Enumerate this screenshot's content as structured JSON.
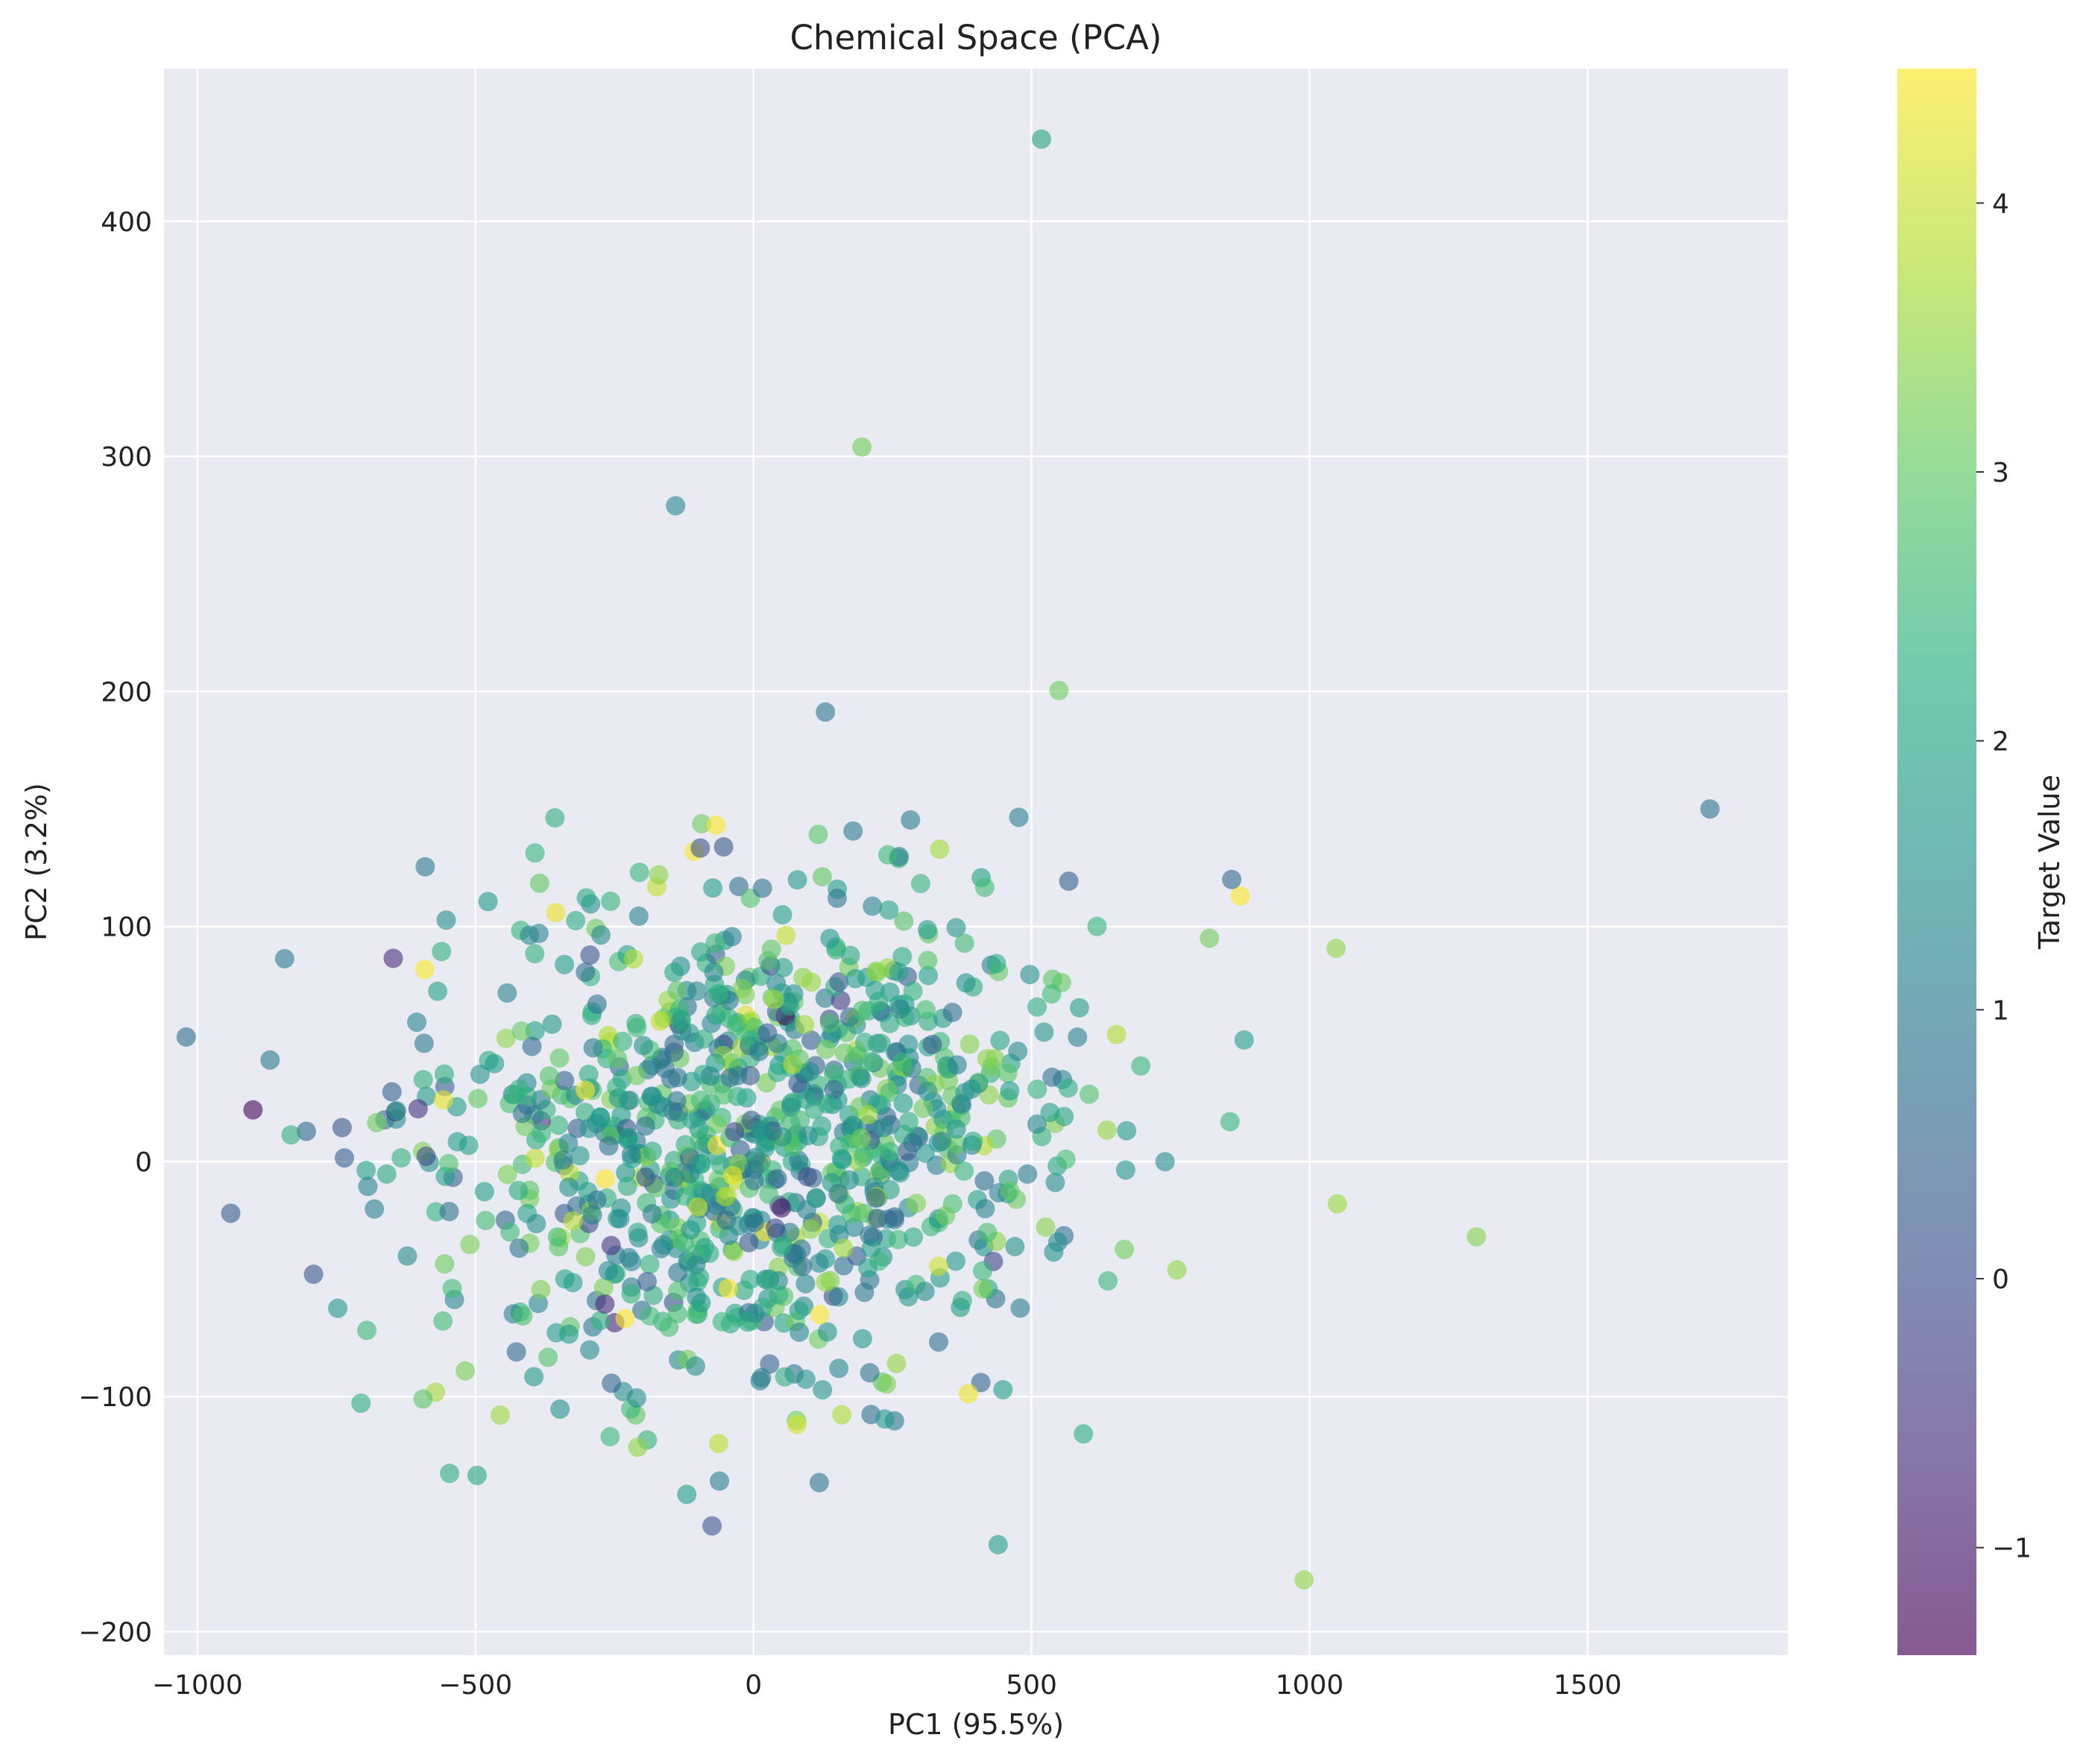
{
  "chart_data": {
    "type": "scatter",
    "title": "Chemical Space (PCA)",
    "xlabel": "PC1 (95.5%)",
    "ylabel": "PC2 (3.2%)",
    "xlim": [
      -1060,
      1860
    ],
    "ylim": [
      -210,
      465
    ],
    "xticks": [
      -1000,
      -500,
      0,
      500,
      1000,
      1500
    ],
    "yticks": [
      -200,
      -100,
      0,
      100,
      200,
      300,
      400
    ],
    "grid": true,
    "background": "#eaeaf2",
    "colorbar": {
      "label": "Target Value",
      "colormap": "viridis",
      "range": [
        -1.4,
        4.5
      ],
      "ticks": [
        -1,
        0,
        1,
        2,
        3,
        4
      ]
    },
    "marker_alpha": 0.6,
    "notable_points": [
      {
        "x": 518,
        "y": 435,
        "value": 2.0
      },
      {
        "x": 195,
        "y": 304,
        "value": 3.2
      },
      {
        "x": -140,
        "y": 279,
        "value": 1.3
      },
      {
        "x": 1720,
        "y": 150,
        "value": 0.8
      },
      {
        "x": -940,
        "y": -22,
        "value": 0.3
      },
      {
        "x": -900,
        "y": 22,
        "value": -1.3
      },
      {
        "x": 1300,
        "y": -32,
        "value": 3.4
      },
      {
        "x": 1050,
        "y": -18,
        "value": 3.6
      },
      {
        "x": 990,
        "y": -178,
        "value": 3.5
      },
      {
        "x": 860,
        "y": 120,
        "value": 0.6
      },
      {
        "x": 820,
        "y": 95,
        "value": 3.2
      },
      {
        "x": 440,
        "y": -163,
        "value": 1.9
      }
    ],
    "cluster": {
      "n_points": 1000,
      "center": [
        0,
        10
      ],
      "std": [
        300,
        55
      ],
      "value_range": [
        -1.4,
        4.5
      ],
      "seed": 42
    }
  }
}
